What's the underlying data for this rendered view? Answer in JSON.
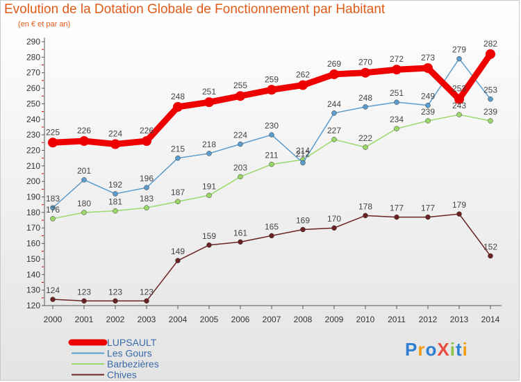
{
  "title": "Evolution de la Dotation Globale de Fonctionnement par Habitant",
  "subtitle": "(en € et par an)",
  "logo": {
    "text": "ProXiti",
    "letters": [
      {
        "ch": "P",
        "color": "#2d7fd4"
      },
      {
        "ch": "r",
        "color": "#f39c12"
      },
      {
        "ch": "o",
        "color": "#2d7fd4"
      },
      {
        "ch": "X",
        "color": "#e74c3c"
      },
      {
        "ch": "i",
        "color": "#8bc34a"
      },
      {
        "ch": "t",
        "color": "#2d7fd4"
      },
      {
        "ch": "i",
        "color": "#f39c12"
      }
    ]
  },
  "chart_data": {
    "type": "line",
    "title": "Evolution de la Dotation Globale de Fonctionnement par Habitant",
    "subtitle": "(en € et par an)",
    "x": [
      "2000",
      "2001",
      "2002",
      "2003",
      "2004",
      "2005",
      "2006",
      "2007",
      "2008",
      "2009",
      "2010",
      "2011",
      "2012",
      "2013",
      "2014"
    ],
    "ylim": [
      120,
      290
    ],
    "yticks": [
      120,
      130,
      140,
      150,
      160,
      170,
      180,
      190,
      200,
      210,
      220,
      230,
      240,
      250,
      260,
      270,
      280,
      290
    ],
    "grid": false,
    "legend": "bottom-left",
    "series": [
      {
        "name": "LUPSAULT",
        "color": "#ee0000",
        "values": [
          225,
          226,
          224,
          226,
          248,
          251,
          255,
          259,
          262,
          269,
          270,
          272,
          273,
          253,
          282
        ]
      },
      {
        "name": "Les Gours",
        "color": "#5b9ccd",
        "values": [
          183,
          201,
          192,
          196,
          215,
          218,
          224,
          230,
          212,
          244,
          248,
          251,
          249,
          279,
          253
        ]
      },
      {
        "name": "Barbezières",
        "color": "#9ad86a",
        "values": [
          176,
          180,
          181,
          183,
          187,
          191,
          203,
          211,
          214,
          227,
          222,
          234,
          239,
          243,
          239
        ]
      },
      {
        "name": "Chives",
        "color": "#6b2222",
        "values": [
          124,
          123,
          123,
          123,
          149,
          159,
          161,
          165,
          169,
          170,
          178,
          177,
          177,
          179,
          152
        ]
      }
    ]
  }
}
